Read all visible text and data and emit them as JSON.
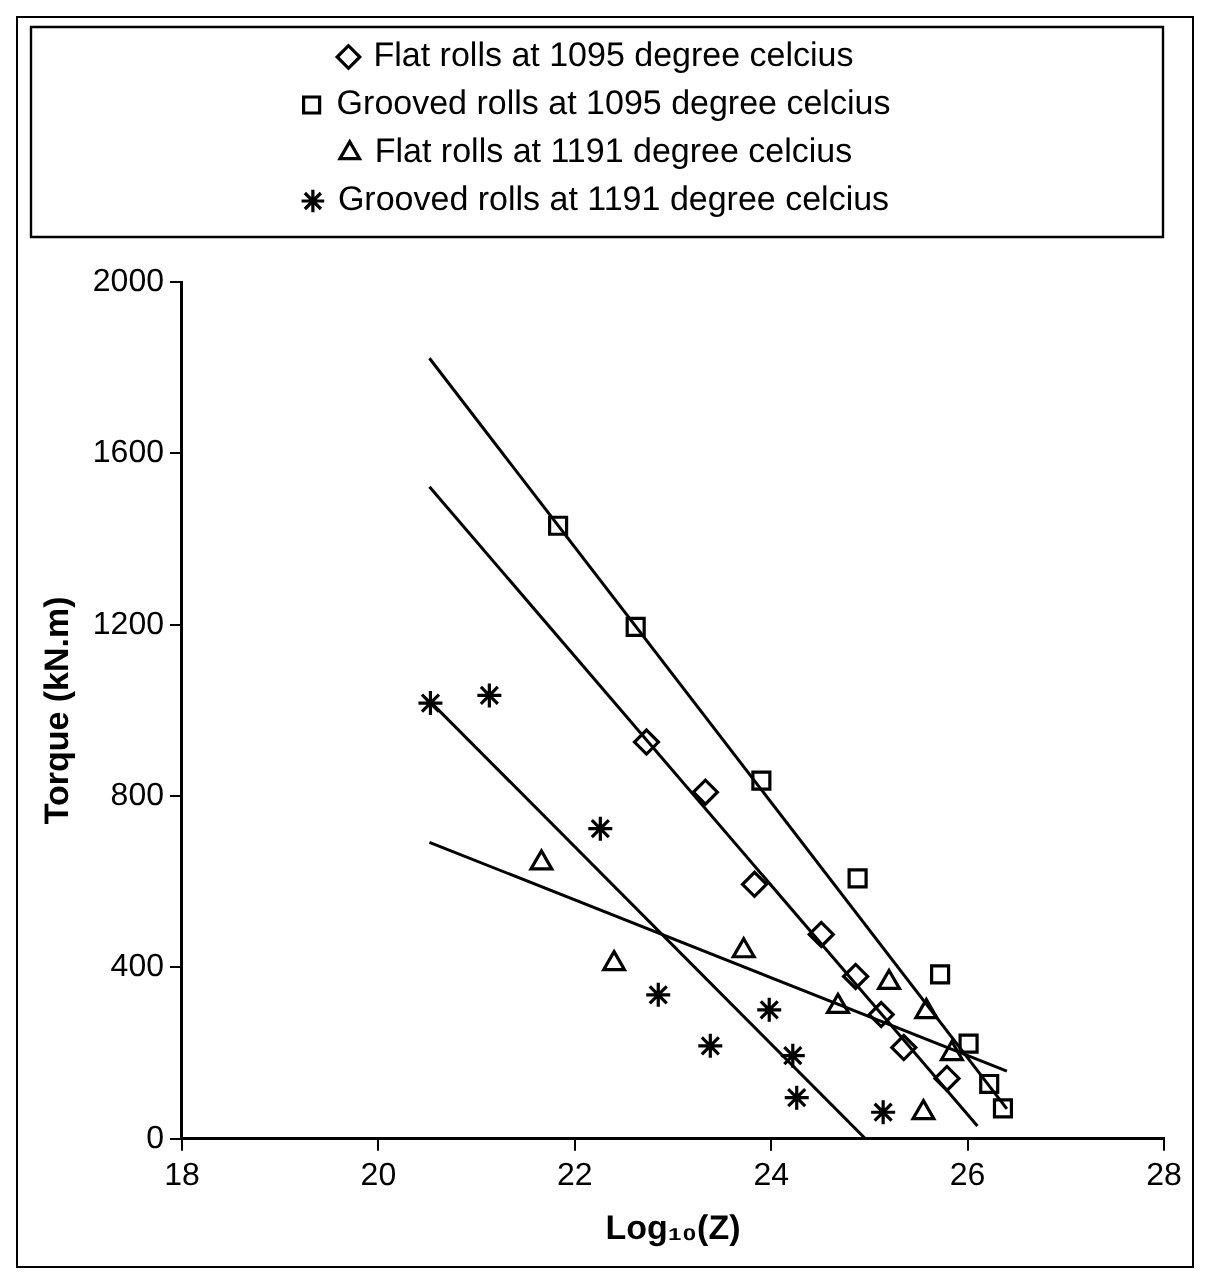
{
  "chart_data": {
    "type": "scatter",
    "xlabel": "Log₁₀(Z)",
    "ylabel": "Torque (kN.m)",
    "xlim": [
      18,
      28
    ],
    "xticks": [
      18,
      20,
      22,
      24,
      26,
      28
    ],
    "ylim": [
      0,
      2000
    ],
    "yticks": [
      0,
      400,
      800,
      1200,
      1600,
      2000
    ],
    "grid": false,
    "legend": "top",
    "series": [
      {
        "name": "Flat rolls at 1095 degree celcius",
        "color": "#000000",
        "marker": "diamond",
        "x": [
          22.73,
          23.33,
          23.83,
          24.51,
          24.86,
          25.12,
          25.35,
          25.79
        ],
        "values": [
          926,
          809,
          594,
          477,
          379,
          290,
          213,
          141
        ]
      },
      {
        "name": "Grooved rolls at 1095 degree celcius",
        "color": "#000000",
        "marker": "square",
        "x": [
          21.83,
          22.62,
          23.9,
          24.88,
          25.72,
          26.01,
          26.22,
          26.36
        ],
        "values": [
          1431,
          1195,
          836,
          608,
          384,
          222,
          128,
          71
        ]
      },
      {
        "name": "Flat rolls at 1191 degree celcius",
        "color": "#000000",
        "marker": "triangle",
        "x": [
          21.66,
          22.4,
          23.72,
          24.68,
          25.2,
          25.58,
          25.84,
          25.55
        ],
        "values": [
          644,
          409,
          439,
          309,
          365,
          297,
          199,
          61
        ]
      },
      {
        "name": "Grooved rolls at 1191 degree celcius",
        "color": "#000000",
        "marker": "cross",
        "x": [
          20.53,
          21.13,
          22.26,
          22.85,
          23.38,
          23.98,
          24.22,
          24.26,
          25.14
        ],
        "values": [
          1017,
          1035,
          724,
          336,
          217,
          301,
          194,
          96,
          62
        ]
      },
      {
        "type": "line",
        "color": "#000000",
        "marker": "none",
        "x": [
          20.52,
          26.1
        ],
        "values": [
          1522,
          30
        ]
      },
      {
        "type": "line",
        "color": "#000000",
        "marker": "none",
        "x": [
          20.52,
          26.4
        ],
        "values": [
          1822,
          70
        ]
      },
      {
        "type": "line",
        "color": "#000000",
        "marker": "none",
        "x": [
          20.52,
          26.4
        ],
        "values": [
          692,
          158
        ]
      },
      {
        "type": "line",
        "color": "#000000",
        "marker": "none",
        "x": [
          20.53,
          24.96
        ],
        "values": [
          1020,
          0
        ]
      }
    ]
  }
}
